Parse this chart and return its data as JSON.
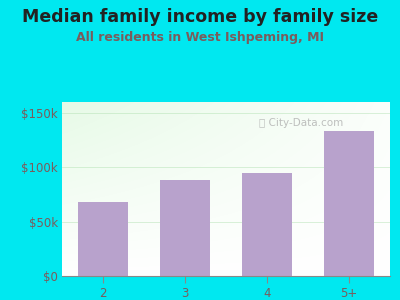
{
  "title": "Median family income by family size",
  "subtitle": "All residents in West Ishpeming, MI",
  "categories": [
    "2",
    "3",
    "4",
    "5+"
  ],
  "values": [
    68000,
    88000,
    95000,
    133000
  ],
  "ylim": [
    0,
    160000
  ],
  "yticks": [
    0,
    50000,
    100000,
    150000
  ],
  "ytick_labels": [
    "$0",
    "$50k",
    "$100k",
    "$150k"
  ],
  "bar_color": "#b8a2cc",
  "title_color": "#222222",
  "subtitle_color": "#7a5c5c",
  "tick_color": "#7a5c5c",
  "bg_outer": "#00e8f0",
  "watermark": "ⓘ City-Data.com",
  "title_fontsize": 12.5,
  "subtitle_fontsize": 9.0,
  "tick_fontsize": 8.5
}
